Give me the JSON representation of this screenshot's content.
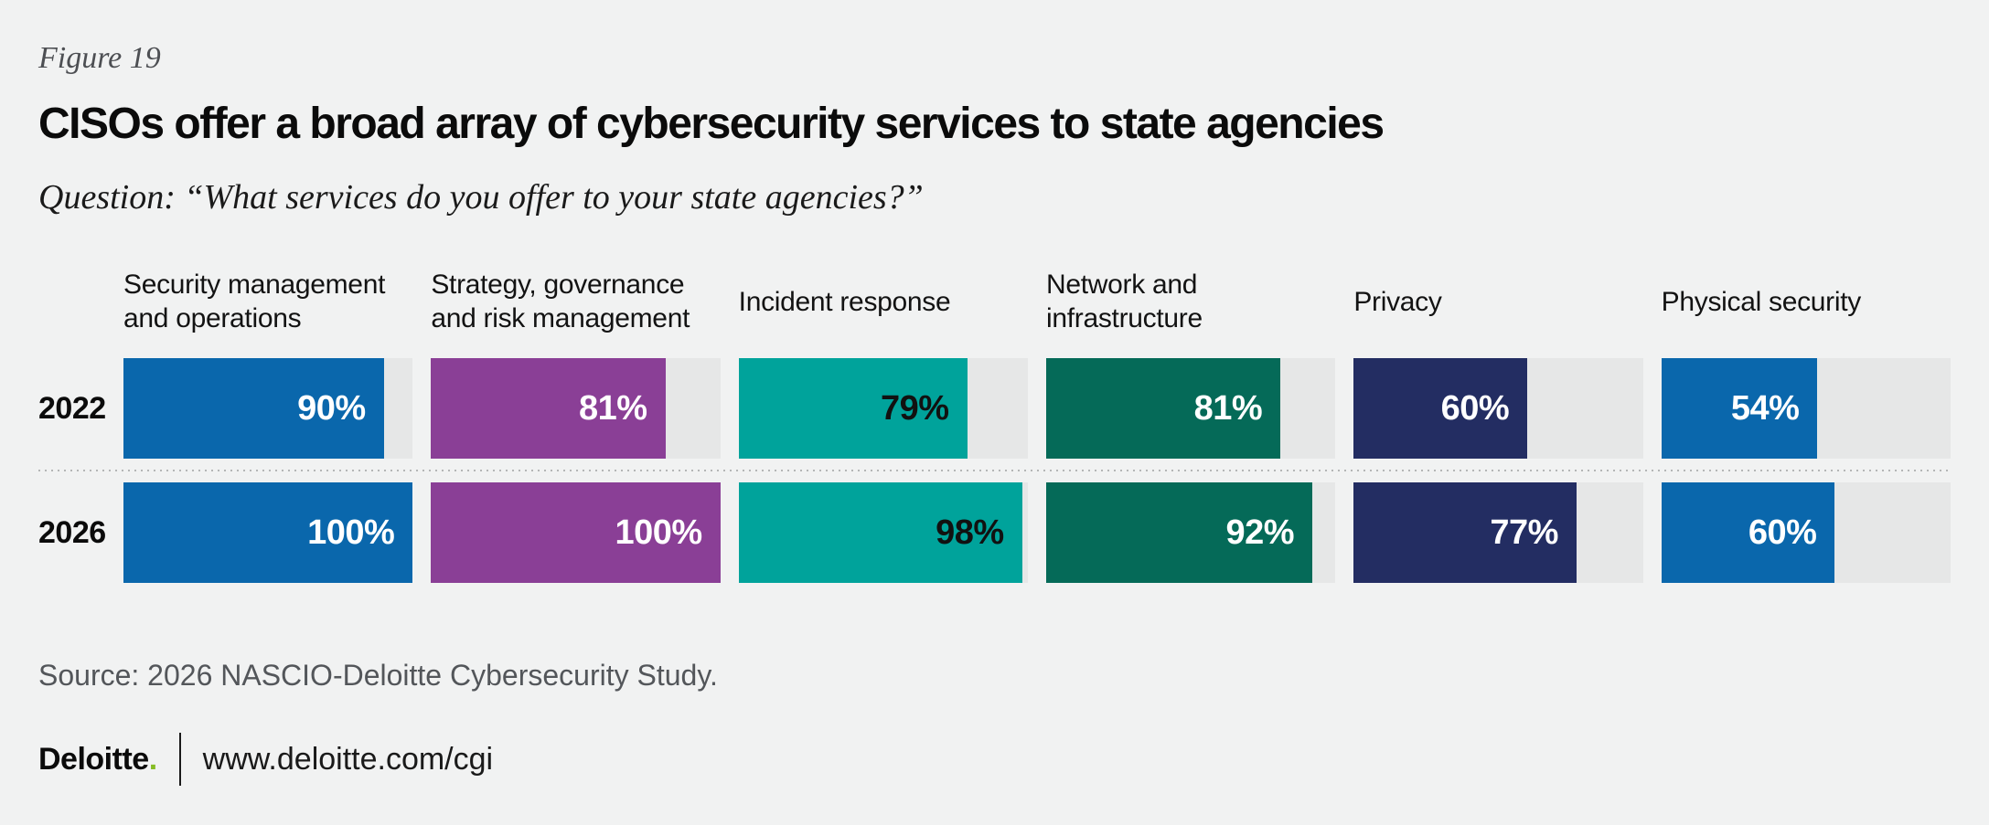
{
  "figure_label": "Figure 19",
  "title": "CISOs offer a broad array of cybersecurity services to state agencies",
  "question": "Question: “What services do you offer to your state agencies?”",
  "source": "Source: 2026 NASCIO-Deloitte Cybersecurity Study.",
  "footer": {
    "brand": "Deloitte",
    "brand_dot": ".",
    "url": "www.deloitte.com/cgi"
  },
  "colors": {
    "page_bg": "#f1f2f2",
    "track": "#e6e7e7",
    "divider_dot": "#b4b6b6",
    "brand_green": "#86bc25",
    "text_gray": "#53565a",
    "figure_gray": "#4d4f53"
  },
  "chart_data": {
    "type": "bar",
    "orientation": "horizontal",
    "title": "CISOs offer a broad array of cybersecurity services to state agencies",
    "categories": [
      "Security management and operations",
      "Strategy, governance and risk management",
      "Incident response",
      "Network and infrastructure",
      "Privacy",
      "Physical security"
    ],
    "series": [
      {
        "name": "2022",
        "values": [
          90,
          81,
          79,
          81,
          60,
          54
        ]
      },
      {
        "name": "2026",
        "values": [
          100,
          100,
          98,
          92,
          77,
          60
        ]
      }
    ],
    "value_suffix": "%",
    "xlim": [
      0,
      100
    ],
    "grid": false,
    "legend": false,
    "columns": [
      {
        "header": "Security management\nand operations",
        "color": "#0a67ac",
        "value_color": "#ffffff"
      },
      {
        "header": "Strategy, governance\nand risk management",
        "color": "#8a3f96",
        "value_color": "#ffffff"
      },
      {
        "header": "Incident response",
        "color": "#00a39b",
        "value_color": "#111111"
      },
      {
        "header": "Network and\ninfrastructure",
        "color": "#056a58",
        "value_color": "#ffffff"
      },
      {
        "header": "Privacy",
        "color": "#232d62",
        "value_color": "#ffffff"
      },
      {
        "header": "Physical security",
        "color": "#0a67ac",
        "value_color": "#ffffff"
      }
    ]
  }
}
